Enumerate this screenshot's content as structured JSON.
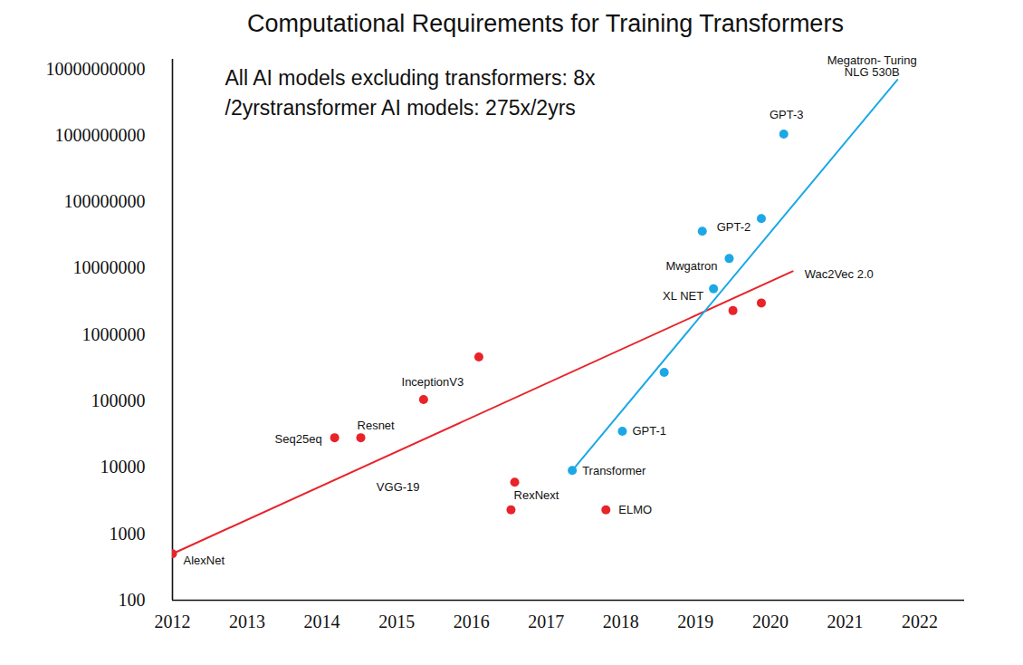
{
  "chart_data": {
    "type": "scatter",
    "title": "Computational Requirements for Training Transformers",
    "subtitle": [
      "All AI models excluding transformers: 8x",
      "/2yrstransformer AI models: 275x/2yrs"
    ],
    "log": "y",
    "grid": false,
    "xlim": [
      2012,
      2022.6
    ],
    "xticks": [
      2012,
      2013,
      2014,
      2015,
      2016,
      2017,
      2018,
      2019,
      2020,
      2021,
      2022
    ],
    "ylim": [
      100,
      14000000000
    ],
    "yticks": [
      100,
      1000,
      10000,
      100000,
      1000000,
      10000000,
      100000000,
      1000000000,
      10000000000
    ],
    "series": [
      {
        "color": "#e8232a",
        "marker": "circle",
        "x": [
          2012.0,
          2014.17,
          2014.52,
          2015.36,
          2016.1,
          2016.58,
          2016.53,
          2017.8,
          2019.5,
          2019.88
        ],
        "values": [
          500,
          28000,
          28000,
          105000,
          460000,
          6000,
          2300,
          2300,
          2300000,
          3000000
        ],
        "labels": [
          "AlexNet",
          "Seq25eq",
          "Resnet",
          "InceptionV3",
          null,
          "RexNext",
          null,
          "ELMO",
          null,
          null
        ],
        "trend": {
          "x": [
            2012.0,
            2020.3
          ],
          "values": [
            500,
            9000000
          ],
          "label": "Wac2Vec 2.0",
          "line_style": "solid"
        }
      },
      {
        "color": "#1ca8e6",
        "marker": "circle",
        "x": [
          2017.35,
          2018.02,
          2018.58,
          2019.24,
          2019.45,
          2019.09,
          2019.88,
          2020.18
        ],
        "values": [
          9000,
          35000,
          270000,
          4900000,
          14000000,
          36000000,
          56000000,
          1050000000
        ],
        "labels": [
          "Transformer",
          "GPT-1",
          null,
          "XL NET",
          "Mwgatron",
          "GPT-2",
          null,
          "GPT-3"
        ],
        "trend": {
          "x": [
            2017.35,
            2021.7
          ],
          "values": [
            9000,
            6900000000
          ],
          "label": "Megatron- Turing\nNLG 530B",
          "line_style": "solid"
        }
      }
    ],
    "annotations": [
      {
        "text": "VGG-19",
        "x": 2014.73,
        "y": 5100
      }
    ]
  }
}
